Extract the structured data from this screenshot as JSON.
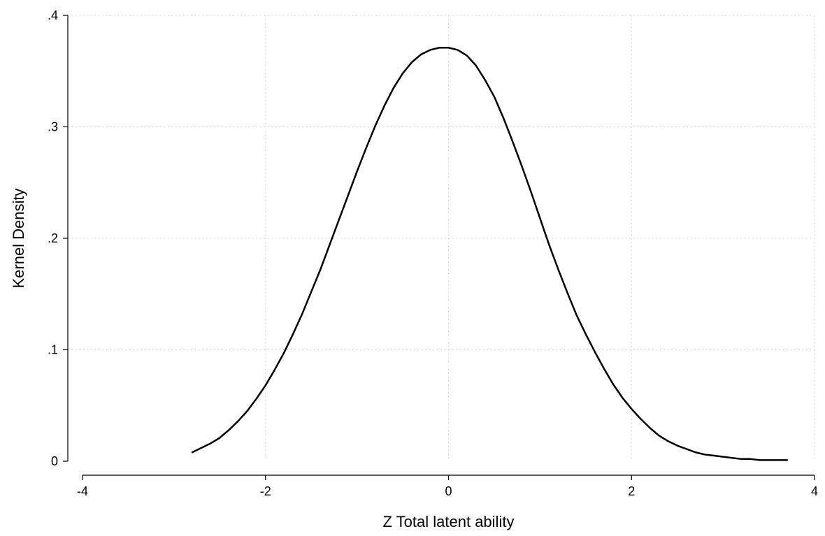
{
  "chart_data": {
    "type": "line",
    "title": "",
    "xlabel": "Z Total latent ability",
    "ylabel": "Kernel Density",
    "xlim": [
      -4,
      4
    ],
    "ylim": [
      0,
      0.4
    ],
    "x_ticks": [
      {
        "value": -4,
        "label": "-4"
      },
      {
        "value": -2,
        "label": "-2"
      },
      {
        "value": 0,
        "label": "0"
      },
      {
        "value": 2,
        "label": "2"
      },
      {
        "value": 4,
        "label": "4"
      }
    ],
    "y_ticks": [
      {
        "value": 0,
        "label": "0"
      },
      {
        "value": 0.1,
        "label": ".1"
      },
      {
        "value": 0.2,
        "label": ".2"
      },
      {
        "value": 0.3,
        "label": ".3"
      },
      {
        "value": 0.4,
        "label": ".4"
      }
    ],
    "grid": true,
    "grid_style": "dotted",
    "series": [
      {
        "color": "#000000",
        "x": [
          -2.8,
          -2.7,
          -2.6,
          -2.5,
          -2.4,
          -2.3,
          -2.2,
          -2.1,
          -2.0,
          -1.9,
          -1.8,
          -1.7,
          -1.6,
          -1.5,
          -1.4,
          -1.3,
          -1.2,
          -1.1,
          -1.0,
          -0.9,
          -0.8,
          -0.7,
          -0.6,
          -0.5,
          -0.4,
          -0.3,
          -0.2,
          -0.1,
          0.0,
          0.1,
          0.2,
          0.3,
          0.4,
          0.5,
          0.6,
          0.7,
          0.8,
          0.9,
          1.0,
          1.1,
          1.2,
          1.3,
          1.4,
          1.5,
          1.6,
          1.7,
          1.8,
          1.9,
          2.0,
          2.1,
          2.2,
          2.3,
          2.4,
          2.5,
          2.6,
          2.7,
          2.8,
          2.9,
          3.0,
          3.1,
          3.2,
          3.3,
          3.4,
          3.5,
          3.6,
          3.7
        ],
        "y": [
          0.008,
          0.012,
          0.016,
          0.021,
          0.028,
          0.036,
          0.045,
          0.056,
          0.068,
          0.082,
          0.097,
          0.114,
          0.132,
          0.152,
          0.172,
          0.194,
          0.216,
          0.238,
          0.26,
          0.281,
          0.301,
          0.319,
          0.335,
          0.348,
          0.358,
          0.365,
          0.369,
          0.371,
          0.371,
          0.369,
          0.364,
          0.355,
          0.342,
          0.327,
          0.308,
          0.287,
          0.265,
          0.242,
          0.218,
          0.194,
          0.172,
          0.151,
          0.131,
          0.114,
          0.098,
          0.083,
          0.069,
          0.057,
          0.047,
          0.038,
          0.03,
          0.023,
          0.018,
          0.014,
          0.011,
          0.008,
          0.006,
          0.005,
          0.004,
          0.003,
          0.002,
          0.002,
          0.001,
          0.001,
          0.001,
          0.001
        ]
      }
    ]
  }
}
